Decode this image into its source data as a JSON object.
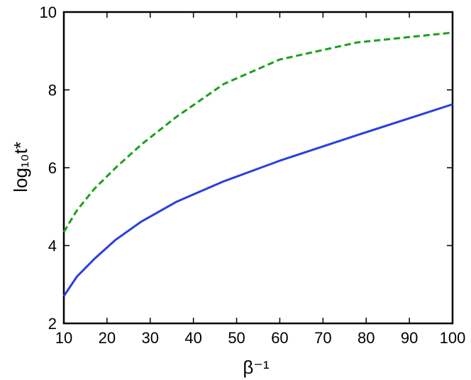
{
  "chart_data": {
    "type": "line",
    "xlabel": "β⁻¹",
    "ylabel": "log₁₀t*",
    "xlim": [
      10,
      100
    ],
    "ylim": [
      2,
      10
    ],
    "xticks": [
      10,
      20,
      30,
      40,
      50,
      60,
      70,
      80,
      90,
      100
    ],
    "yticks": [
      2,
      4,
      6,
      8,
      10
    ],
    "grid": false,
    "legend": "none",
    "series": [
      {
        "color": "#2a3fe0",
        "style": "solid",
        "x": [
          10,
          13,
          17,
          22,
          28,
          36,
          47,
          60,
          78,
          100
        ],
        "y": [
          2.7,
          3.2,
          3.65,
          4.15,
          4.62,
          5.12,
          5.65,
          6.18,
          6.84,
          7.63
        ]
      },
      {
        "color": "#1aa11a",
        "style": "dashed",
        "x": [
          10,
          13,
          17,
          22,
          28,
          36,
          47,
          60,
          78,
          100
        ],
        "y": [
          4.35,
          4.9,
          5.45,
          6.0,
          6.6,
          7.3,
          8.15,
          8.78,
          9.22,
          9.47
        ]
      }
    ]
  }
}
